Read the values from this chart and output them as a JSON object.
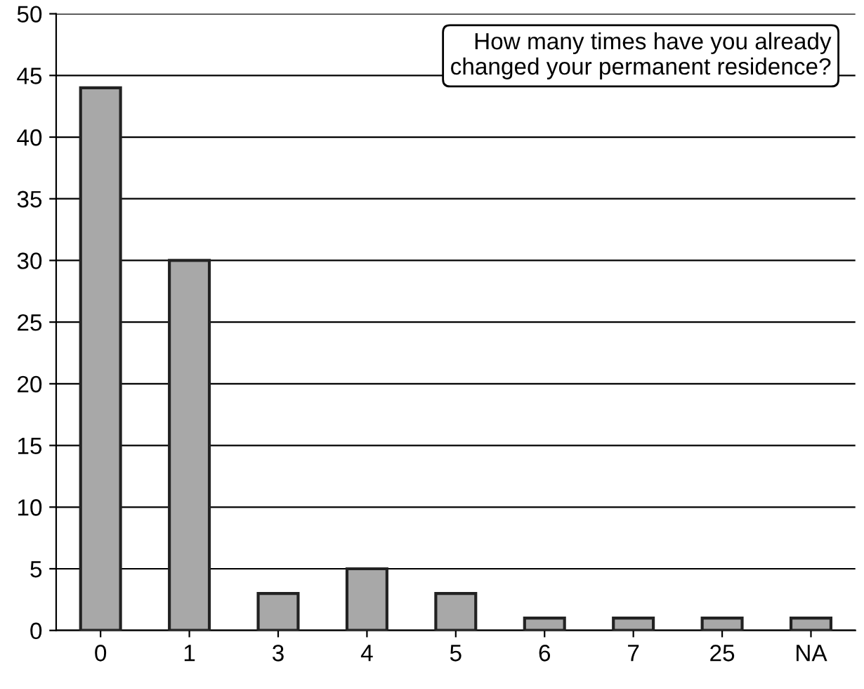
{
  "chart_data": {
    "type": "bar",
    "categories": [
      "0",
      "1",
      "3",
      "4",
      "5",
      "6",
      "7",
      "25",
      "NA"
    ],
    "values": [
      44,
      30,
      3,
      5,
      3,
      1,
      1,
      1,
      1
    ],
    "color": "#a8a8a8",
    "ylim": [
      0,
      50
    ],
    "yticks": [
      0,
      5,
      10,
      15,
      20,
      25,
      30,
      35,
      40,
      45,
      50
    ],
    "grid": "y",
    "annotations": [
      "How many times have you already\nchanged your permanent residence?"
    ]
  }
}
